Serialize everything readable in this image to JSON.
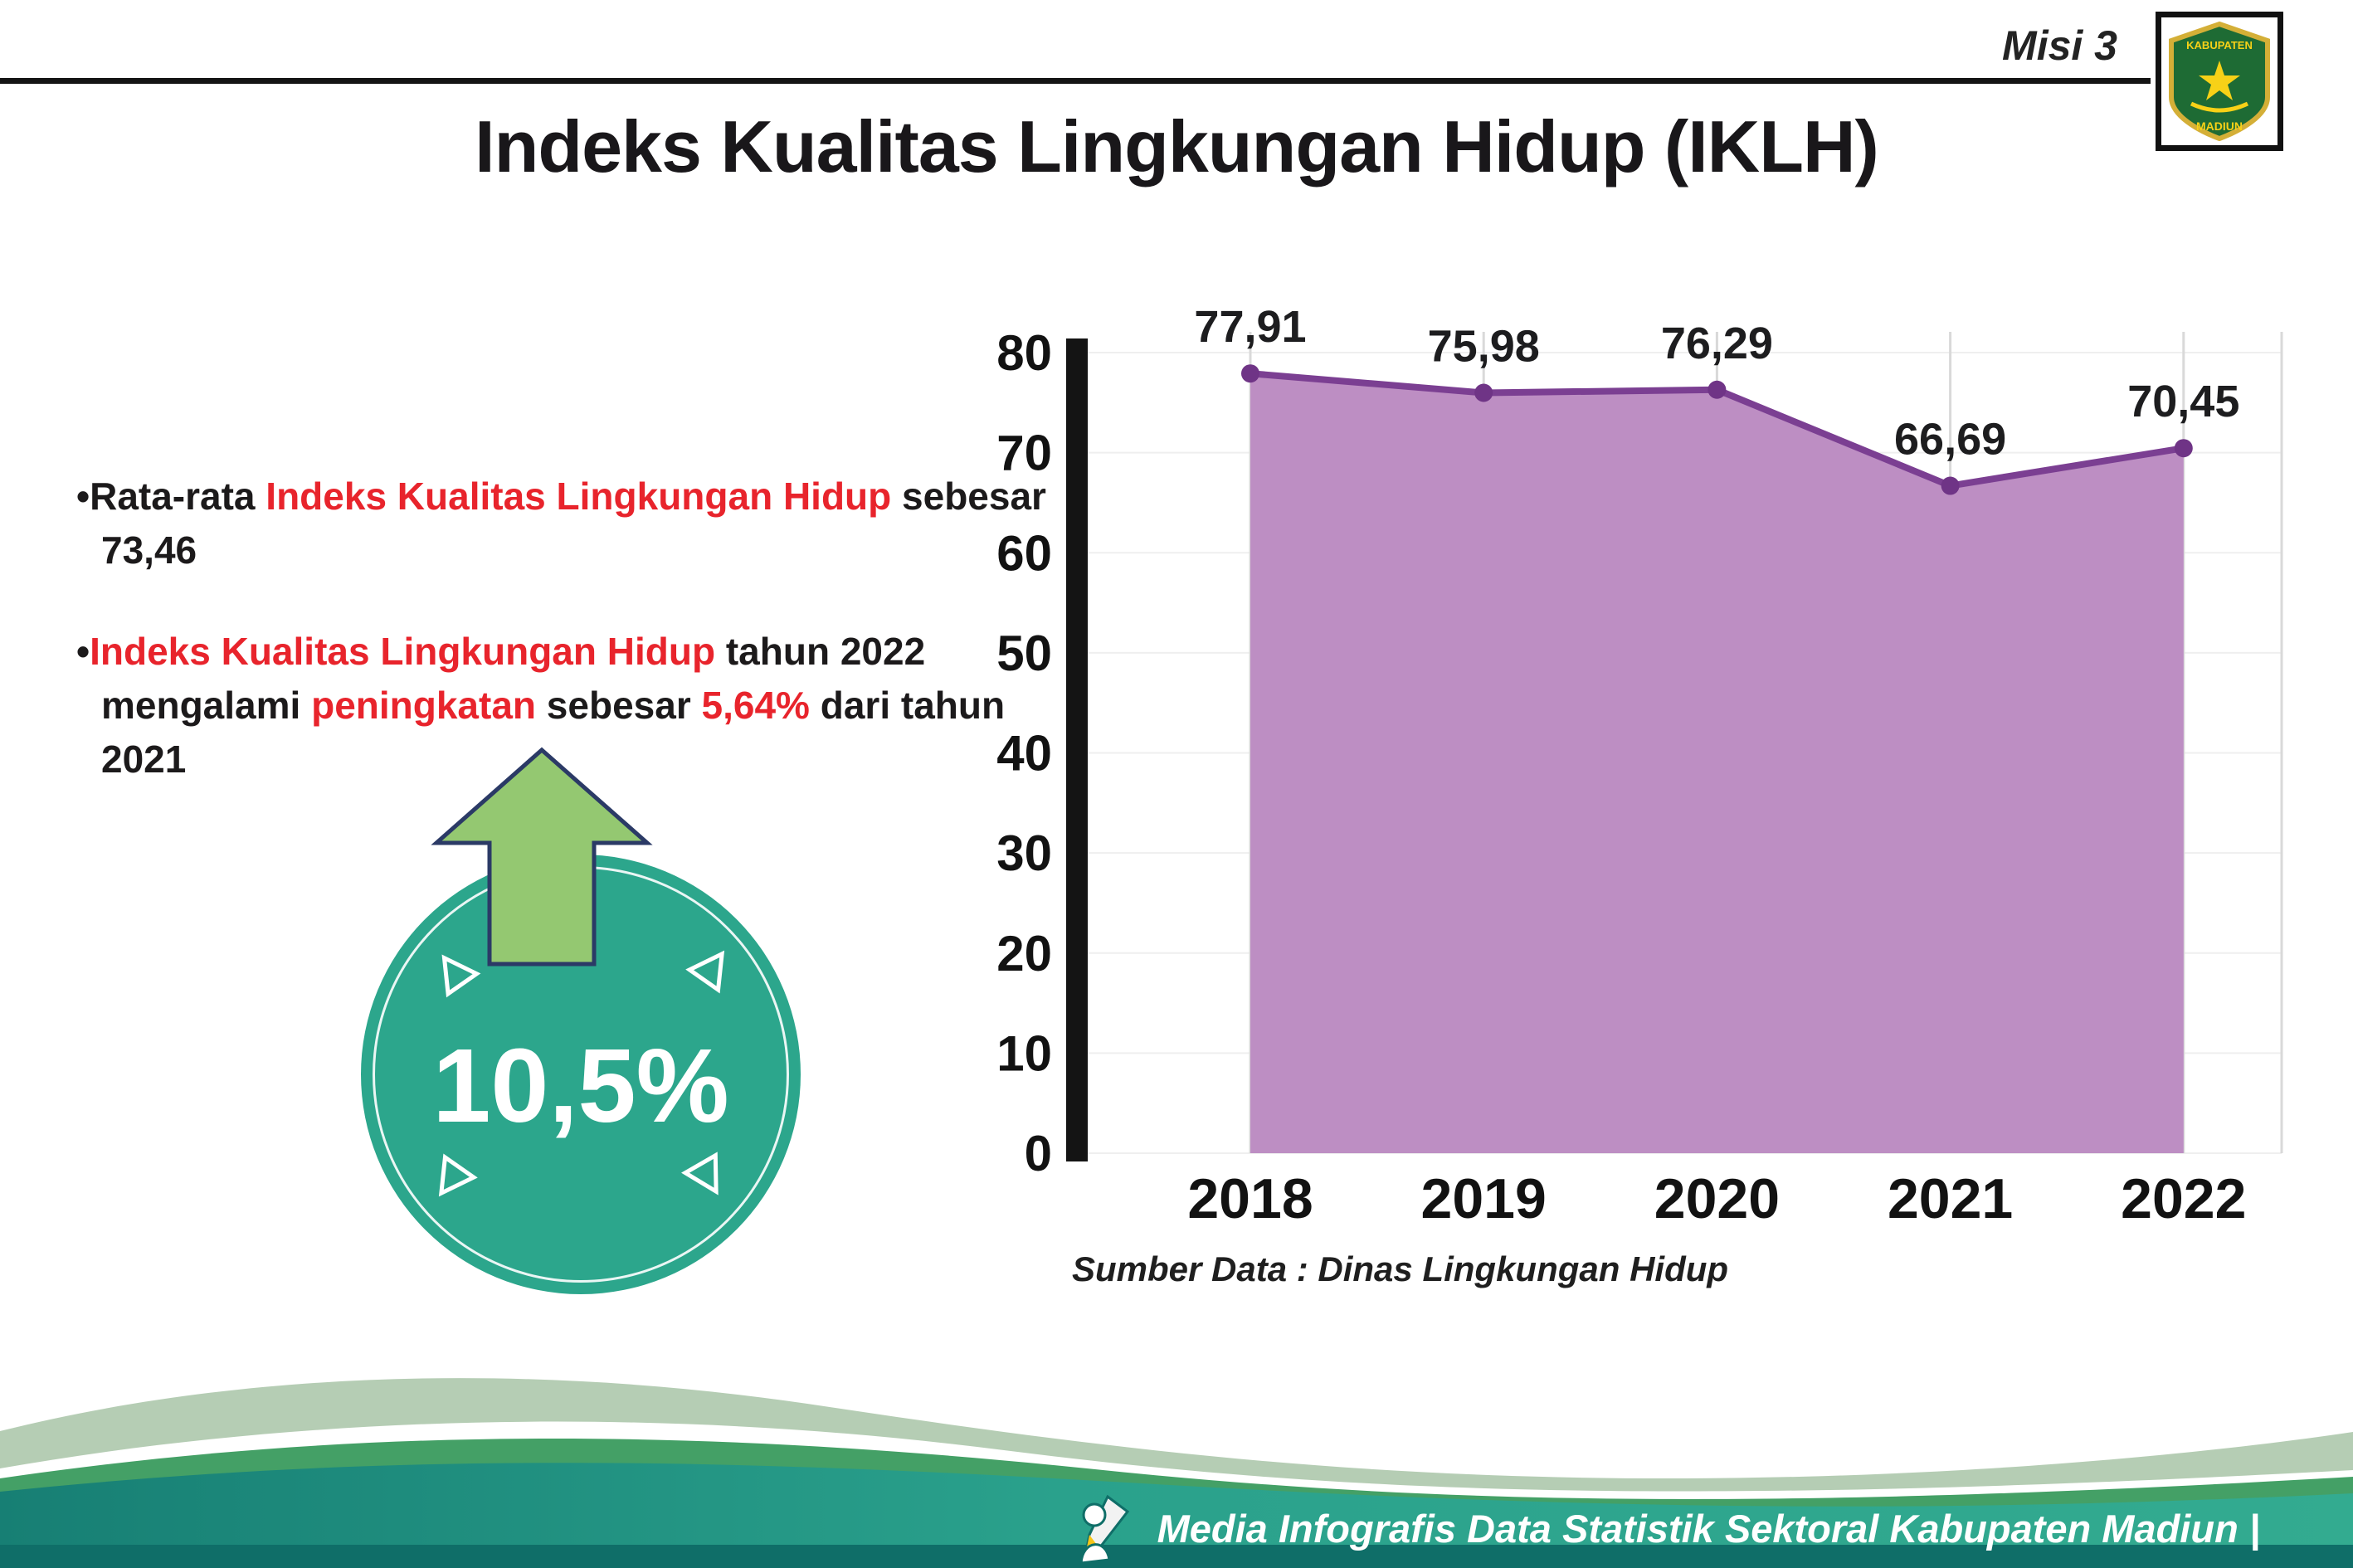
{
  "header": {
    "misi": "Misi 3"
  },
  "logo": {
    "top_text": "KABUPATEN",
    "bottom_text": "MADIUN"
  },
  "title": "Indeks Kualitas Lingkungan Hidup (IKLH)",
  "bullets": {
    "item1": {
      "parts": [
        {
          "text": "•Rata-rata "
        },
        {
          "text": "Indeks Kualitas Lingkungan Hidup"
        },
        {
          "text": " sebesar 73,46"
        }
      ]
    },
    "item2": {
      "parts": [
        {
          "text": "•"
        },
        {
          "text": "Indeks Kualitas Lingkungan Hidup"
        },
        {
          "text": " tahun 2022 mengalami "
        },
        {
          "text": "peningkatan"
        },
        {
          "text": " sebesar "
        },
        {
          "text": "5,64%"
        },
        {
          "text": " dari tahun 2021"
        }
      ]
    }
  },
  "badge": {
    "value": "10,5%"
  },
  "chart_data": {
    "type": "area",
    "title": "Indeks Kualitas Lingkungan Hidup (IKLH)",
    "categories": [
      "2018",
      "2019",
      "2020",
      "2021",
      "2022"
    ],
    "values": [
      77.91,
      75.98,
      76.29,
      66.69,
      70.45
    ],
    "value_labels": [
      "77,91",
      "75,98",
      "76,29",
      "66,69",
      "70,45"
    ],
    "xlabel": "",
    "ylabel": "",
    "ylim": [
      0,
      80
    ],
    "yticks": [
      0,
      10,
      20,
      30,
      40,
      50,
      60,
      70,
      80
    ],
    "grid": "vertical-light",
    "legend": "none",
    "fill_color": "#bd8ec3",
    "line_color": "#7b3f92",
    "marker_color": "#6f3486",
    "source": "Sumber Data : Dinas Lingkungan Hidup"
  },
  "footer": {
    "caption": "Media Infografis Data Statistik Sektoral Kabupaten Madiun |"
  },
  "colors": {
    "red": "#e8242c",
    "teal": "#2ca68c",
    "arrow_green": "#94c871",
    "arrow_outline": "#2b3a66",
    "axis_black": "#141414"
  }
}
